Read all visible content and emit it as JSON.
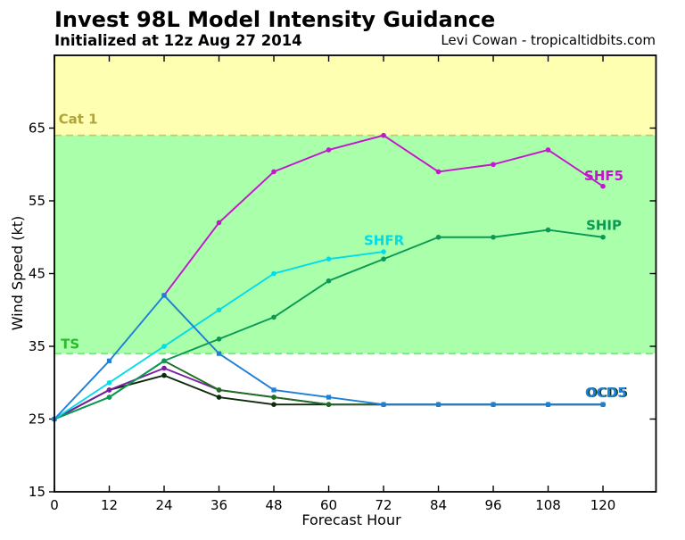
{
  "header": {
    "title": "Invest 98L Model Intensity Guidance",
    "subtitle": "Initialized at 12z Aug 27 2014",
    "credit": "Levi Cowan - tropicaltidbits.com"
  },
  "chart_data": {
    "type": "line",
    "title": "Invest 98L Model Intensity Guidance",
    "xlabel": "Forecast Hour",
    "ylabel": "Wind Speed (kt)",
    "xlim": [
      0,
      131.6
    ],
    "ylim": [
      15,
      75
    ],
    "xticks": [
      0,
      12,
      24,
      36,
      48,
      60,
      72,
      84,
      96,
      108,
      120
    ],
    "yticks": [
      15,
      25,
      35,
      45,
      55,
      65
    ],
    "grid": false,
    "legend_position": "end-of-line-labels",
    "axis_color": "#000000",
    "bands": [
      {
        "name": "hurricane-cat1-zone",
        "label": "Cat 1",
        "from": 64,
        "to": 75,
        "fill": "#ffffb2",
        "threshold": {
          "value": 64,
          "color": "#c9c96a",
          "style": "dashed"
        },
        "label_color": "#b1a43a"
      },
      {
        "name": "tropical-storm-zone",
        "label": "TS",
        "from": 34,
        "to": 64,
        "fill": "#aaffaa",
        "threshold": {
          "value": 34,
          "color": "#7fe57f",
          "style": "dashed"
        },
        "label_color": "#2db92d"
      }
    ],
    "series": [
      {
        "name": "unlabeled-darkest-green",
        "color": "#0d2a0d",
        "marker": "circle",
        "x": [
          0,
          12,
          24,
          36,
          48,
          60,
          72,
          84,
          96,
          108,
          120
        ],
        "values": [
          25,
          29,
          31,
          28,
          27,
          27,
          27,
          27,
          27,
          27,
          27
        ]
      },
      {
        "name": "unlabeled-purple",
        "color": "#7a1fa2",
        "marker": "circle",
        "x": [
          0,
          12,
          24,
          36,
          48,
          60,
          72,
          84,
          96,
          108,
          120
        ],
        "values": [
          25,
          29,
          32,
          29,
          28,
          27,
          27,
          27,
          27,
          27,
          27
        ]
      },
      {
        "name": "unlabeled-dark-green-decay",
        "color": "#1d6e1d",
        "marker": "circle",
        "x": [
          0,
          12,
          24,
          36,
          48,
          60,
          72,
          84,
          96,
          108,
          120
        ],
        "values": [
          25,
          28,
          33,
          29,
          28,
          27,
          27,
          27,
          27,
          27,
          27
        ]
      },
      {
        "name": "SHIP",
        "color": "#0a9a55",
        "marker": "circle",
        "x": [
          0,
          12,
          24,
          36,
          48,
          60,
          72,
          84,
          96,
          108,
          120
        ],
        "values": [
          25,
          28,
          33,
          36,
          39,
          44,
          47,
          50,
          50,
          51,
          50
        ]
      },
      {
        "name": "SHFR",
        "color": "#00dce8",
        "marker": "circle",
        "x": [
          0,
          12,
          24,
          36,
          48,
          60,
          72
        ],
        "values": [
          25,
          30,
          35,
          40,
          45,
          47,
          48
        ]
      },
      {
        "name": "SHF5",
        "color": "#c415cf",
        "marker": "circle",
        "x": [
          24,
          36,
          48,
          60,
          72,
          84,
          96,
          108,
          120
        ],
        "values": [
          42,
          52,
          59,
          62,
          64,
          59,
          60,
          62,
          57
        ]
      },
      {
        "name": "OCD5",
        "color": "#1e7fd6",
        "marker": "square",
        "x": [
          0,
          12,
          24,
          36,
          48,
          60,
          72,
          84,
          96,
          108,
          120
        ],
        "values": [
          25,
          33,
          42,
          34,
          29,
          28,
          27,
          27,
          27,
          27,
          27
        ]
      }
    ],
    "annotations": [
      {
        "text": "Cat 1",
        "hour": 0.9,
        "kt": 65.6,
        "color": "#b1a43a",
        "overprint": false
      },
      {
        "text": "TS",
        "hour": 1.4,
        "kt": 34.7,
        "color": "#2db92d",
        "overprint": false
      },
      {
        "text": "SHFR",
        "hour": 67.7,
        "kt": 48.9,
        "color": "#00dce8",
        "overprint": false
      },
      {
        "text": "SHF5",
        "hour": 115.9,
        "kt": 57.8,
        "color": "#c415cf",
        "overprint": false
      },
      {
        "text": "SHIP",
        "hour": 116.3,
        "kt": 51.0,
        "color": "#0a9a55",
        "overprint": false
      },
      {
        "text": "OCD5",
        "hour": 116.1,
        "kt": 28.0,
        "color": "#1e7fd6",
        "overprint": true,
        "overprint_color": "#143d14"
      }
    ]
  }
}
